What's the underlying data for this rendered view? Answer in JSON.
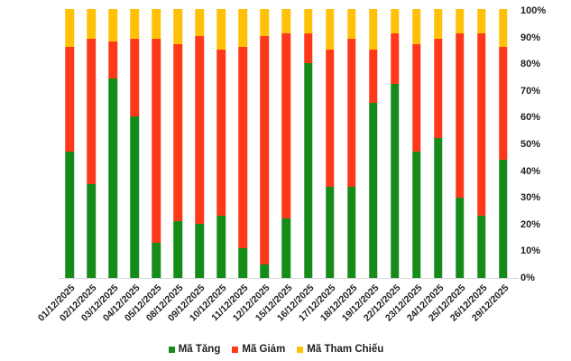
{
  "chart_data": {
    "type": "bar",
    "stacked": true,
    "stacked_mode": "percent",
    "title": "",
    "xlabel": "",
    "ylabel": "",
    "ylim": [
      0,
      100
    ],
    "grid": false,
    "y_axis_side": "right",
    "legend_position": "bottom",
    "yticks": [
      "0%",
      "10%",
      "20%",
      "30%",
      "40%",
      "50%",
      "60%",
      "70%",
      "80%",
      "90%",
      "100%"
    ],
    "categories": [
      "01/12/2025",
      "02/12/2025",
      "03/12/2025",
      "04/12/2025",
      "05/12/2025",
      "08/12/2025",
      "09/12/2025",
      "10/12/2025",
      "11/12/2025",
      "12/12/2025",
      "15/12/2025",
      "16/12/2025",
      "17/12/2025",
      "18/12/2025",
      "19/12/2025",
      "22/12/2025",
      "23/12/2025",
      "24/12/2025",
      "25/12/2025",
      "26/12/2025",
      "29/12/2025"
    ],
    "series": [
      {
        "name": "Mã Tăng",
        "color": "#158c19",
        "values": [
          47,
          35,
          74,
          60,
          13,
          21,
          20,
          23,
          11,
          5,
          22,
          80,
          34,
          34,
          65,
          72,
          47,
          52,
          30,
          23,
          44
        ]
      },
      {
        "name": "Mã Giảm",
        "color": "#fd3919",
        "values": [
          39,
          54,
          14,
          29,
          76,
          66,
          70,
          62,
          75,
          85,
          69,
          11,
          51,
          55,
          20,
          19,
          40,
          37,
          61,
          68,
          42
        ]
      },
      {
        "name": "Mã Tham Chiếu",
        "color": "#ffc107",
        "values": [
          14,
          11,
          12,
          11,
          11,
          13,
          10,
          15,
          14,
          10,
          9,
          9,
          15,
          11,
          15,
          9,
          13,
          11,
          9,
          9,
          14
        ]
      }
    ]
  },
  "colors": {
    "background": "#ffffff",
    "axis_line": "#d9d9d9",
    "text": "#1f1f1f"
  }
}
